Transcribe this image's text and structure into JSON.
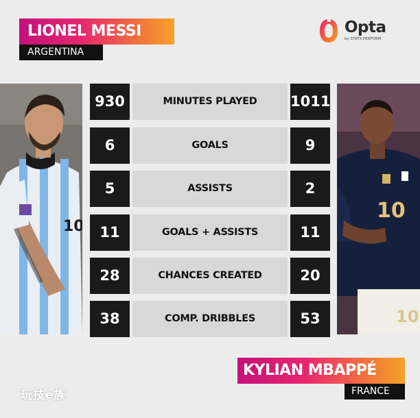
{
  "left_player": {
    "name": "LIONEL MESSI",
    "country": "ARGENTINA",
    "shirt_number": "10"
  },
  "right_player": {
    "name": "KYLIAN MBAPPÉ",
    "country": "FRANCE",
    "shirt_number": "10"
  },
  "logo": {
    "word": "Opta",
    "sub": "by STATS PERFORM"
  },
  "stats": [
    {
      "label": "MINUTES PLAYED",
      "left": "930",
      "right": "1011"
    },
    {
      "label": "GOALS",
      "left": "6",
      "right": "9"
    },
    {
      "label": "ASSISTS",
      "left": "5",
      "right": "2"
    },
    {
      "label": "GOALS + ASSISTS",
      "left": "11",
      "right": "11"
    },
    {
      "label": "CHANCES CREATED",
      "left": "28",
      "right": "20"
    },
    {
      "label": "COMP. DRIBBLES",
      "left": "38",
      "right": "53"
    }
  ],
  "watermark": "玩技e族",
  "colors": {
    "gradient_start": "#c2127a",
    "gradient_end": "#f7a227",
    "stat_box": "#1a1a1a",
    "label_bg": "#d8d8d8"
  }
}
